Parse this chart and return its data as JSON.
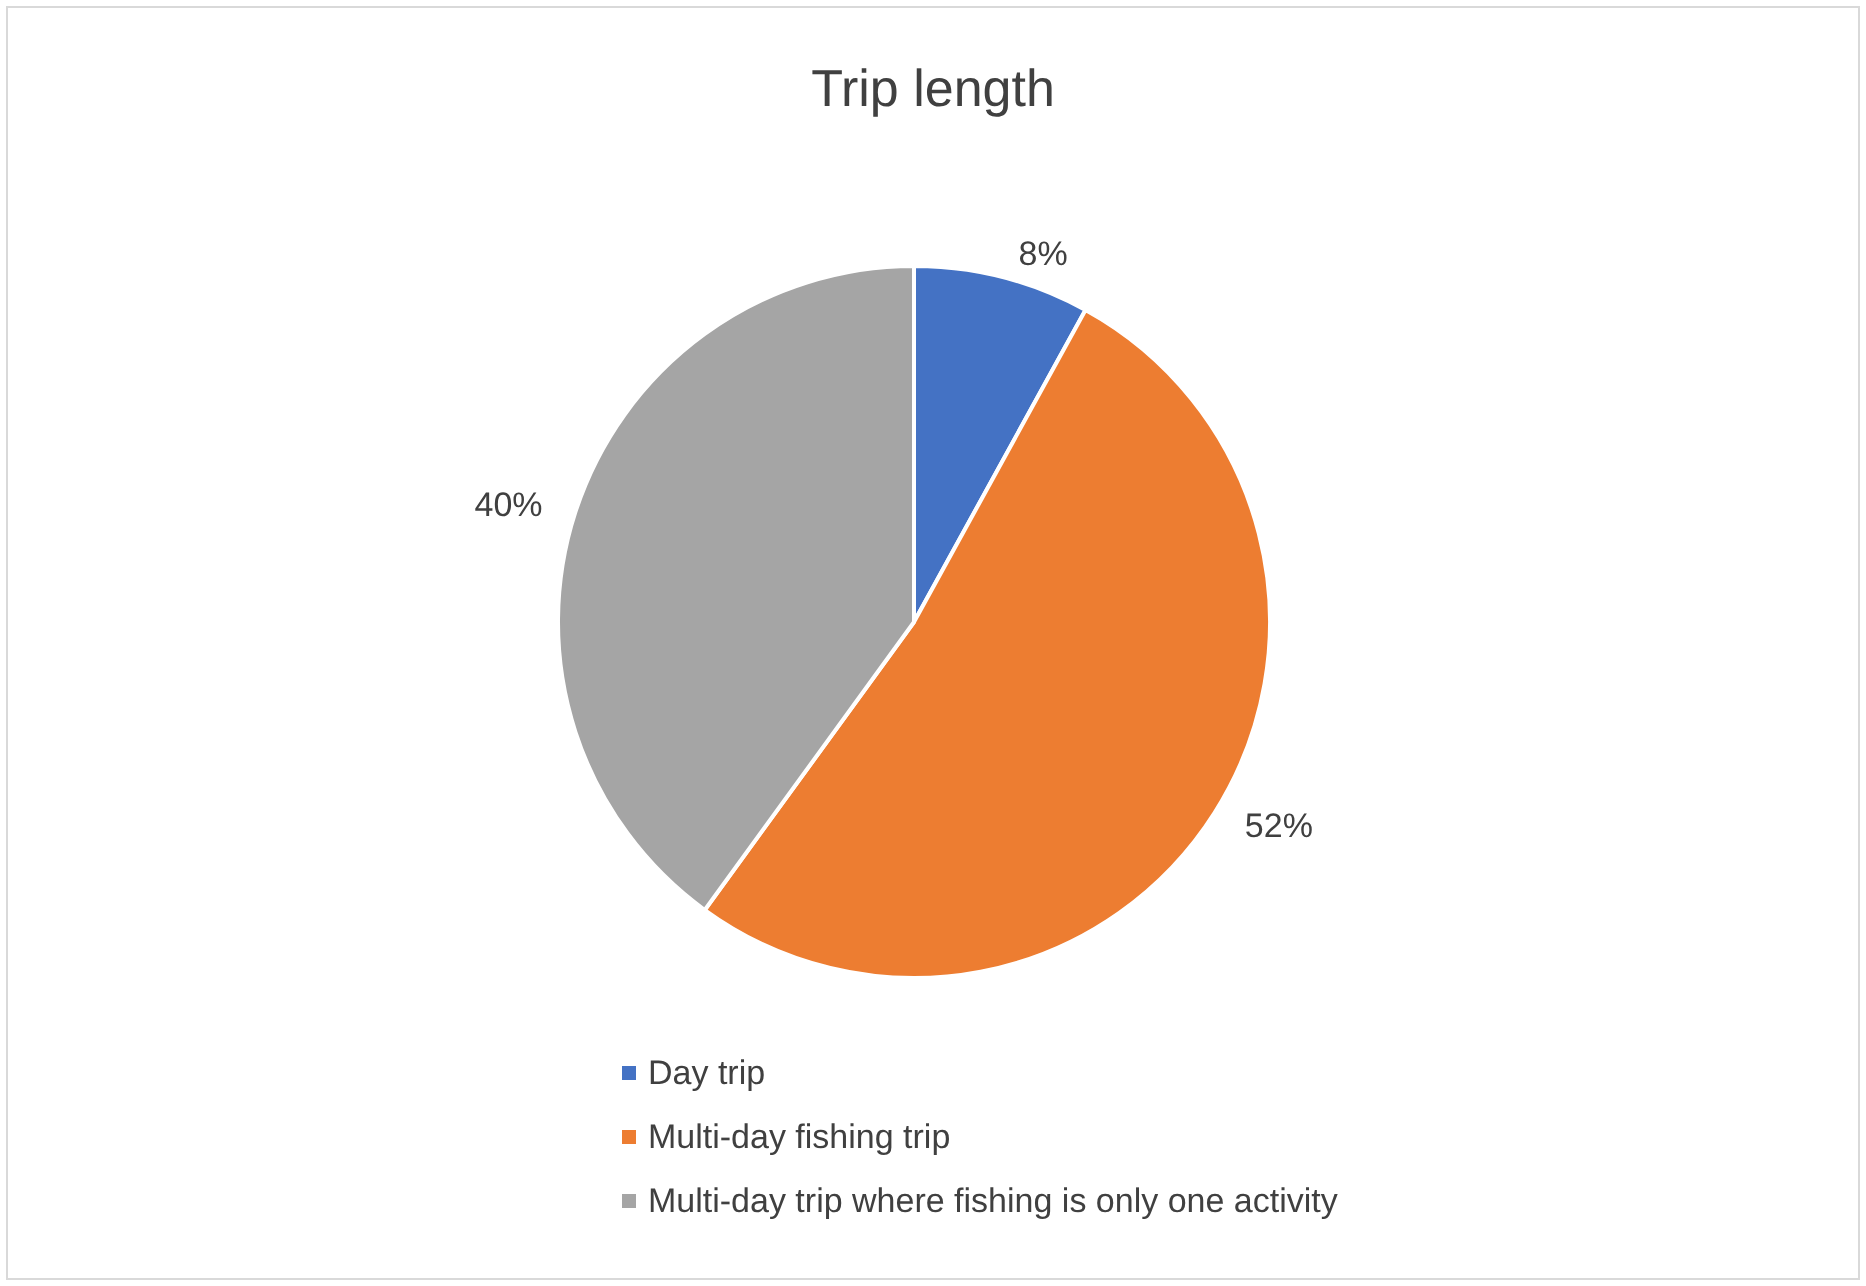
{
  "chart_data": {
    "type": "pie",
    "title": "Trip length",
    "categories": [
      "Day trip",
      "Multi-day fishing trip",
      "Multi-day trip where fishing is only one activity"
    ],
    "values": [
      8,
      52,
      40
    ],
    "colors": [
      "#4472c4",
      "#ed7d31",
      "#a5a5a5"
    ],
    "value_labels": [
      "8%",
      "52%",
      "40%"
    ],
    "legend": "bottom"
  }
}
